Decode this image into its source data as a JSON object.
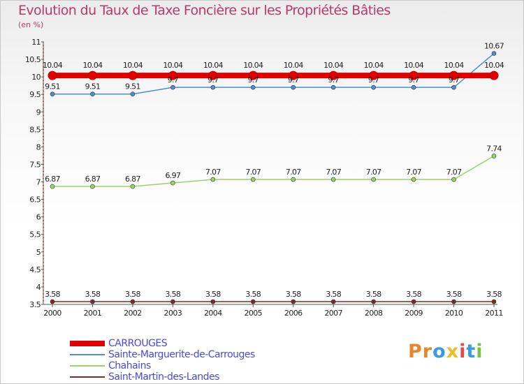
{
  "title": "Evolution du Taux de Taxe Foncière sur les Propriétés Bâties",
  "subtitle": "(en %)",
  "logo": {
    "text": "Proxiti",
    "letters": [
      "P",
      "r",
      "o",
      "x",
      "i",
      "t",
      "i"
    ],
    "colors": [
      "#e8872a",
      "#e8872a",
      "#3a9be0",
      "#e8bf2a",
      "#e84a4a",
      "#3a9be0",
      "#7cc24a"
    ]
  },
  "chart_data": {
    "type": "line",
    "title": "Evolution du Taux de Taxe Foncière sur les Propriétés Bâties",
    "ylabel": "(en %)",
    "xlabel": "",
    "categories": [
      "2000",
      "2001",
      "2002",
      "2003",
      "2004",
      "2005",
      "2006",
      "2007",
      "2008",
      "2009",
      "2010",
      "2011"
    ],
    "ylim": [
      3.5,
      11
    ],
    "yticks": [
      "3.5",
      "4",
      "4.5",
      "5",
      "5.5",
      "6",
      "6.5",
      "7",
      "7.5",
      "8",
      "8.5",
      "9",
      "9.5",
      "10",
      "10.5",
      "11"
    ],
    "grid": false,
    "legend_position": "bottom-left",
    "series": [
      {
        "name": "CARROUGES",
        "color": "#e00000",
        "values": [
          10.04,
          10.04,
          10.04,
          10.04,
          10.04,
          10.04,
          10.04,
          10.04,
          10.04,
          10.04,
          10.04,
          10.04
        ],
        "labels": [
          "10.04",
          "10.04",
          "10.04",
          "10.04",
          "10.04",
          "10.04",
          "10.04",
          "10.04",
          "10.04",
          "10.04",
          "10.04",
          "10.04"
        ]
      },
      {
        "name": "Sainte-Marguerite-de-Carrouges",
        "color": "#4a8fd0",
        "values": [
          9.51,
          9.51,
          9.51,
          9.7,
          9.7,
          9.7,
          9.7,
          9.7,
          9.7,
          9.7,
          9.7,
          10.67
        ],
        "labels": [
          "9.51",
          "9.51",
          "9.51",
          "9.7",
          "9.7",
          "9.7",
          "9.7",
          "9.7",
          "9.7",
          "9.7",
          "9.7",
          "10.67"
        ]
      },
      {
        "name": "Chahains",
        "color": "#9bd468",
        "values": [
          6.87,
          6.87,
          6.87,
          6.97,
          7.07,
          7.07,
          7.07,
          7.07,
          7.07,
          7.07,
          7.07,
          7.74
        ],
        "labels": [
          "6.87",
          "6.87",
          "6.87",
          "6.97",
          "7.07",
          "7.07",
          "7.07",
          "7.07",
          "7.07",
          "7.07",
          "7.07",
          "7.74"
        ]
      },
      {
        "name": "Saint-Martin-des-Landes",
        "color": "#7a2a2a",
        "values": [
          3.58,
          3.58,
          3.58,
          3.58,
          3.58,
          3.58,
          3.58,
          3.58,
          3.58,
          3.58,
          3.58,
          3.58
        ],
        "labels": [
          "3.58",
          "3.58",
          "3.58",
          "3.58",
          "3.58",
          "3.58",
          "3.58",
          "3.58",
          "3.58",
          "3.58",
          "3.58",
          "3.58"
        ]
      }
    ]
  }
}
